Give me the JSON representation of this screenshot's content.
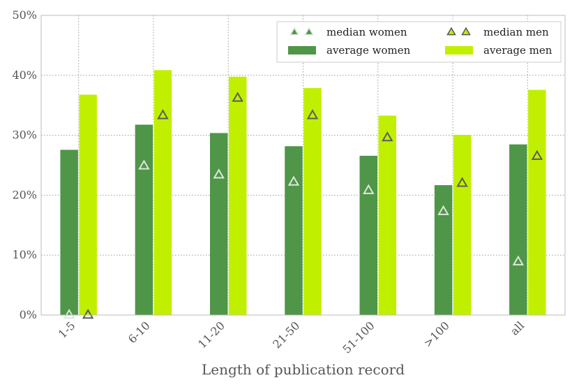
{
  "chart_data": {
    "type": "bar",
    "title": "",
    "xlabel": "Length of publication record",
    "ylabel": "",
    "categories": [
      "1-5",
      "6-10",
      "11-20",
      "21-50",
      "51-100",
      ">100",
      "all"
    ],
    "y_ticks": [
      "0%",
      "10%",
      "20%",
      "30%",
      "40%",
      "50%"
    ],
    "ylim": [
      0,
      50
    ],
    "grid": true,
    "legend_position": "top-right",
    "series": [
      {
        "name": "average women",
        "kind": "bar",
        "color": "#4f9648",
        "values": [
          27.6,
          31.8,
          30.4,
          28.2,
          26.6,
          21.7,
          28.5
        ]
      },
      {
        "name": "average men",
        "kind": "bar",
        "color": "#c1ef00",
        "values": [
          36.8,
          40.9,
          39.8,
          37.9,
          33.3,
          30.1,
          37.6
        ]
      },
      {
        "name": "median women",
        "kind": "marker",
        "color": "#4f9648",
        "values": [
          0,
          24.9,
          23.4,
          22.2,
          20.8,
          17.3,
          8.9
        ]
      },
      {
        "name": "median men",
        "kind": "marker",
        "color": "#c1ef00",
        "values": [
          0,
          33.3,
          36.2,
          33.3,
          29.6,
          22.0,
          26.5
        ]
      }
    ]
  }
}
